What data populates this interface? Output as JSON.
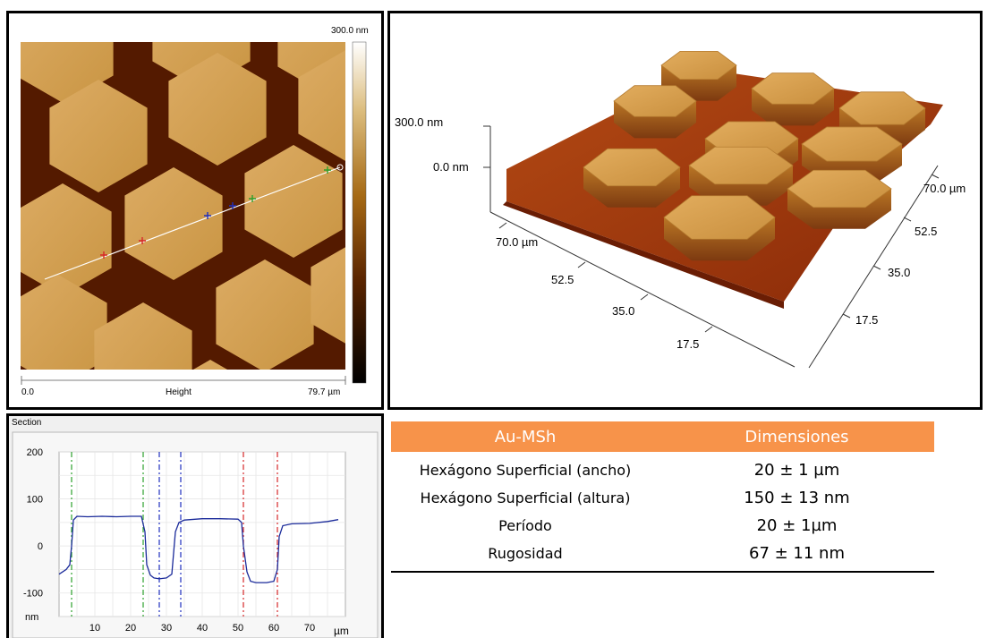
{
  "afm_2d": {
    "scale_top": "300.0 nm",
    "x_start": "0.0",
    "x_label": "Height",
    "x_end": "79.7 µm"
  },
  "afm_3d": {
    "z_labels": [
      "300.0 nm",
      "0.0 nm"
    ],
    "left_axis": [
      "70.0 µm",
      "52.5",
      "35.0",
      "17.5"
    ],
    "right_axis": [
      "70.0 µm",
      "52.5",
      "35.0",
      "17.5"
    ]
  },
  "section": {
    "title": "Section",
    "ylabel": "nm",
    "xlabel": "µm"
  },
  "chart_data": {
    "type": "line",
    "title": "Section",
    "xlabel": "µm",
    "ylabel": "nm",
    "xlim": [
      0,
      80
    ],
    "ylim": [
      -150,
      200
    ],
    "yticks": [
      200,
      100,
      0,
      -100
    ],
    "xticks": [
      10,
      20,
      30,
      40,
      50,
      60,
      70
    ],
    "grid": true,
    "series": [
      {
        "x": [
          0,
          1,
          2,
          3,
          3.5,
          4,
          5,
          8,
          12,
          16,
          20,
          23,
          24,
          24.5,
          25.5,
          26.5,
          28,
          30,
          31.5,
          32.5,
          33.5,
          35,
          40,
          45,
          50,
          51,
          51.5,
          52.5,
          53.5,
          55,
          58,
          60,
          61,
          61.5,
          62.5,
          65,
          70,
          75,
          78
        ],
        "y": [
          -60,
          -55,
          -50,
          -40,
          0,
          55,
          63,
          62,
          63,
          62,
          63,
          63,
          30,
          -40,
          -62,
          -68,
          -70,
          -68,
          -60,
          30,
          50,
          55,
          58,
          58,
          57,
          50,
          0,
          -55,
          -75,
          -78,
          -78,
          -75,
          -50,
          20,
          43,
          47,
          48,
          52,
          56
        ]
      }
    ],
    "markers": [
      {
        "x": 3.5,
        "color": "#2ca02c"
      },
      {
        "x": 23.5,
        "color": "#2ca02c"
      },
      {
        "x": 28,
        "color": "#1f2fbf"
      },
      {
        "x": 34,
        "color": "#1f2fbf"
      },
      {
        "x": 51.5,
        "color": "#d62728"
      },
      {
        "x": 61,
        "color": "#d62728"
      }
    ]
  },
  "table": {
    "headers": [
      "Au-MSh",
      "Dimensiones"
    ],
    "rows": [
      [
        "Hexágono Superficial (ancho)",
        "20 ± 1 µm"
      ],
      [
        "Hexágono Superficial (altura)",
        "150 ± 13 nm"
      ],
      [
        "Período",
        "20 ±  1µm"
      ],
      [
        "Rugosidad",
        "67 ± 11 nm"
      ]
    ]
  }
}
